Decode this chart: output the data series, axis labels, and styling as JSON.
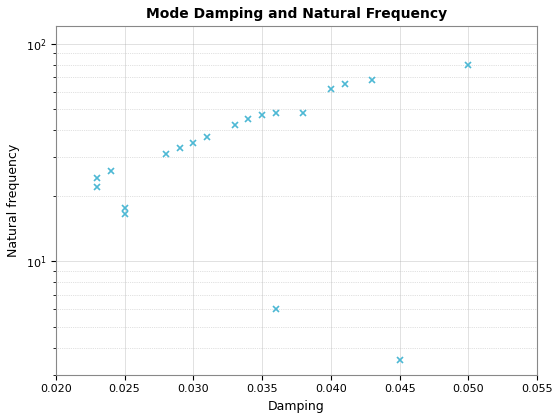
{
  "title": "Mode Damping and Natural Frequency",
  "xlabel": "Damping",
  "ylabel": "Natural frequency",
  "marker": "x",
  "marker_color": "#4db8d4",
  "marker_size": 5,
  "marker_linewidth": 1.2,
  "xlim": [
    0.02,
    0.055
  ],
  "ylim": [
    3.0,
    120
  ],
  "xticks": [
    0.02,
    0.025,
    0.03,
    0.035,
    0.04,
    0.045,
    0.05,
    0.055
  ],
  "yticks": [
    10,
    100
  ],
  "x": [
    0.023,
    0.023,
    0.024,
    0.025,
    0.025,
    0.028,
    0.029,
    0.03,
    0.031,
    0.033,
    0.034,
    0.035,
    0.036,
    0.038,
    0.04,
    0.041,
    0.043,
    0.036,
    0.045,
    0.05
  ],
  "y": [
    22,
    24,
    26,
    16.5,
    17.5,
    31,
    33,
    35,
    37,
    42,
    45,
    47,
    48,
    48,
    62,
    65,
    68,
    6.0,
    3.5,
    80
  ]
}
